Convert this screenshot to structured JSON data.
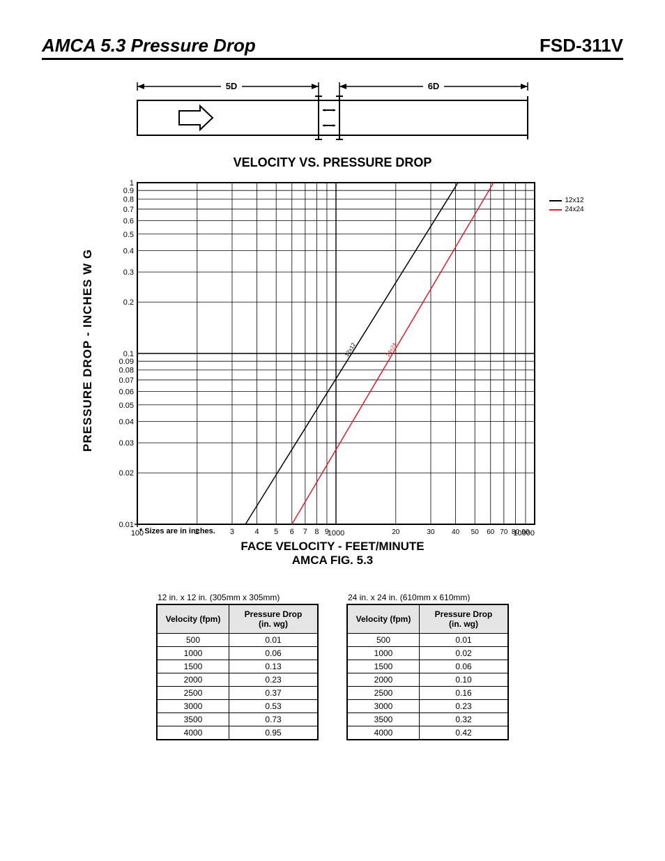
{
  "header": {
    "left": "AMCA 5.3 Pressure Drop",
    "right": "FSD-311V"
  },
  "duct": {
    "left_label": "5D",
    "right_label": "6D"
  },
  "chart": {
    "title": "VELOCITY VS. PRESSURE DROP",
    "y_label": "PRESSURE DROP - INCHES W G",
    "x_label": "FACE VELOCITY - FEET/MINUTE",
    "fig_label": "AMCA FIG. 5.3",
    "footnote": "* Sizes are in inches.",
    "xlim": [
      100,
      10000
    ],
    "ylim": [
      0.01,
      1
    ],
    "scale": "log-log",
    "x_ticks_major": [
      100,
      1000,
      10000
    ],
    "x_ticks_labeled": [
      2,
      3,
      4,
      5,
      6,
      7,
      8,
      9,
      20,
      30,
      40,
      50,
      60,
      70,
      80,
      90
    ],
    "y_ticks": [
      0.01,
      0.02,
      0.03,
      0.04,
      0.05,
      0.06,
      0.07,
      0.08,
      0.09,
      0.1,
      0.2,
      0.3,
      0.4,
      0.5,
      0.6,
      0.7,
      0.8,
      0.9,
      1
    ],
    "series": [
      {
        "name": "12x12",
        "color": "#000000",
        "points": [
          [
            350,
            0.01
          ],
          [
            4000,
            0.95
          ]
        ]
      },
      {
        "name": "24x24",
        "color": "#d4202a",
        "points": [
          [
            600,
            0.01
          ],
          [
            4000,
            0.42
          ]
        ]
      }
    ],
    "legend": [
      {
        "label": "12x12",
        "color": "#000000"
      },
      {
        "label": "24x24",
        "color": "#d4202a"
      }
    ],
    "plot_bg": "#ffffff",
    "grid_color": "#000000",
    "axis_width": 2
  },
  "tables": {
    "col_headers": [
      "Velocity (fpm)",
      "Pressure Drop (in. wg)"
    ],
    "left": {
      "caption": "12 in. x 12 in. (305mm x 305mm)",
      "rows": [
        [
          "500",
          "0.01"
        ],
        [
          "1000",
          "0.06"
        ],
        [
          "1500",
          "0.13"
        ],
        [
          "2000",
          "0.23"
        ],
        [
          "2500",
          "0.37"
        ],
        [
          "3000",
          "0.53"
        ],
        [
          "3500",
          "0.73"
        ],
        [
          "4000",
          "0.95"
        ]
      ]
    },
    "right": {
      "caption": "24 in. x 24 in. (610mm x 610mm)",
      "rows": [
        [
          "500",
          "0.01"
        ],
        [
          "1000",
          "0.02"
        ],
        [
          "1500",
          "0.06"
        ],
        [
          "2000",
          "0.10"
        ],
        [
          "2500",
          "0.16"
        ],
        [
          "3000",
          "0.23"
        ],
        [
          "3500",
          "0.32"
        ],
        [
          "4000",
          "0.42"
        ]
      ]
    }
  }
}
